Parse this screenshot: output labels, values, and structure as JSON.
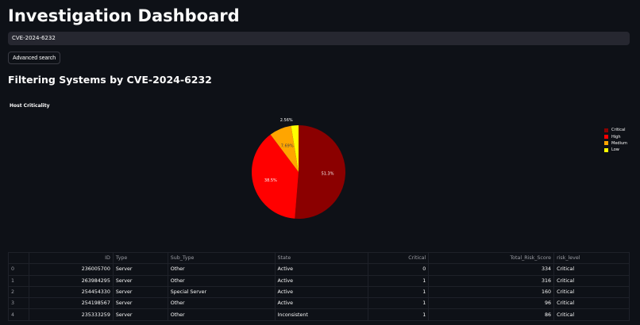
{
  "title": "Investigation Dashboard",
  "search": {
    "value": "CVE-2024-6232"
  },
  "advanced_search_label": "Advanced search",
  "section_title": "Filtering Systems by CVE-2024-6232",
  "chart_data": {
    "type": "pie",
    "title": "Host Criticality",
    "categories": [
      "Critical",
      "High",
      "Medium",
      "Low"
    ],
    "values": [
      51.3,
      38.5,
      7.69,
      2.56
    ],
    "labels": [
      "51.3%",
      "38.5%",
      "7.69%",
      "2.56%"
    ],
    "colors": [
      "#8b0000",
      "#ff0000",
      "#ffa500",
      "#ffff00"
    ],
    "legend": "right"
  },
  "table": {
    "columns": [
      "",
      "ID",
      "Type",
      "Sub_Type",
      "State",
      "Critical",
      "Total_Risk_Score",
      "risk_level"
    ],
    "rows": [
      [
        "0",
        "236005700",
        "Server",
        "Other",
        "Active",
        "0",
        "334",
        "Critical"
      ],
      [
        "1",
        "263984295",
        "Server",
        "Other",
        "Active",
        "1",
        "316",
        "Critical"
      ],
      [
        "2",
        "254454330",
        "Server",
        "Special Server",
        "Active",
        "1",
        "160",
        "Critical"
      ],
      [
        "3",
        "254198567",
        "Server",
        "Other",
        "Active",
        "1",
        "96",
        "Critical"
      ],
      [
        "4",
        "235333259",
        "Server",
        "Other",
        "Inconsistent",
        "1",
        "86",
        "Critical"
      ]
    ]
  }
}
